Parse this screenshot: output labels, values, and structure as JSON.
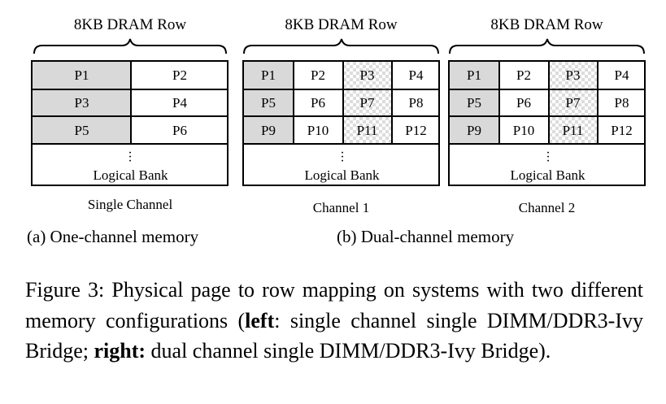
{
  "panel_a": {
    "row_label": "8KB DRAM Row",
    "cells": [
      [
        "P1",
        "P2"
      ],
      [
        "P3",
        "P4"
      ],
      [
        "P5",
        "P6"
      ]
    ],
    "bank_label": "Logical Bank",
    "channel_label": "Single Channel"
  },
  "panel_b": {
    "channel1": {
      "row_label": "8KB DRAM Row",
      "cells": [
        [
          "P1",
          "P2",
          "P3",
          "P4"
        ],
        [
          "P5",
          "P6",
          "P7",
          "P8"
        ],
        [
          "P9",
          "P10",
          "P11",
          "P12"
        ]
      ],
      "bank_label": "Logical Bank",
      "channel_label": "Channel 1"
    },
    "channel2": {
      "row_label": "8KB DRAM Row",
      "cells": [
        [
          "P1",
          "P2",
          "P3",
          "P4"
        ],
        [
          "P5",
          "P6",
          "P7",
          "P8"
        ],
        [
          "P9",
          "P10",
          "P11",
          "P12"
        ]
      ],
      "bank_label": "Logical Bank",
      "channel_label": "Channel 2"
    }
  },
  "subcaptions": {
    "a": "(a) One-channel memory",
    "b": "(b) Dual-channel memory"
  },
  "caption": {
    "part1": "Figure 3: Physical page to row mapping on systems with two different memory configurations (",
    "left_bold": "left",
    "part2": ": single channel single DIMM/DDR3-Ivy Bridge; ",
    "right_bold": "right:",
    "part3": " dual channel single DIMM/DDR3-Ivy Bridge)."
  },
  "shading_colors": {
    "gray": "#d9d9d9",
    "checker": "#dcdcdc"
  }
}
